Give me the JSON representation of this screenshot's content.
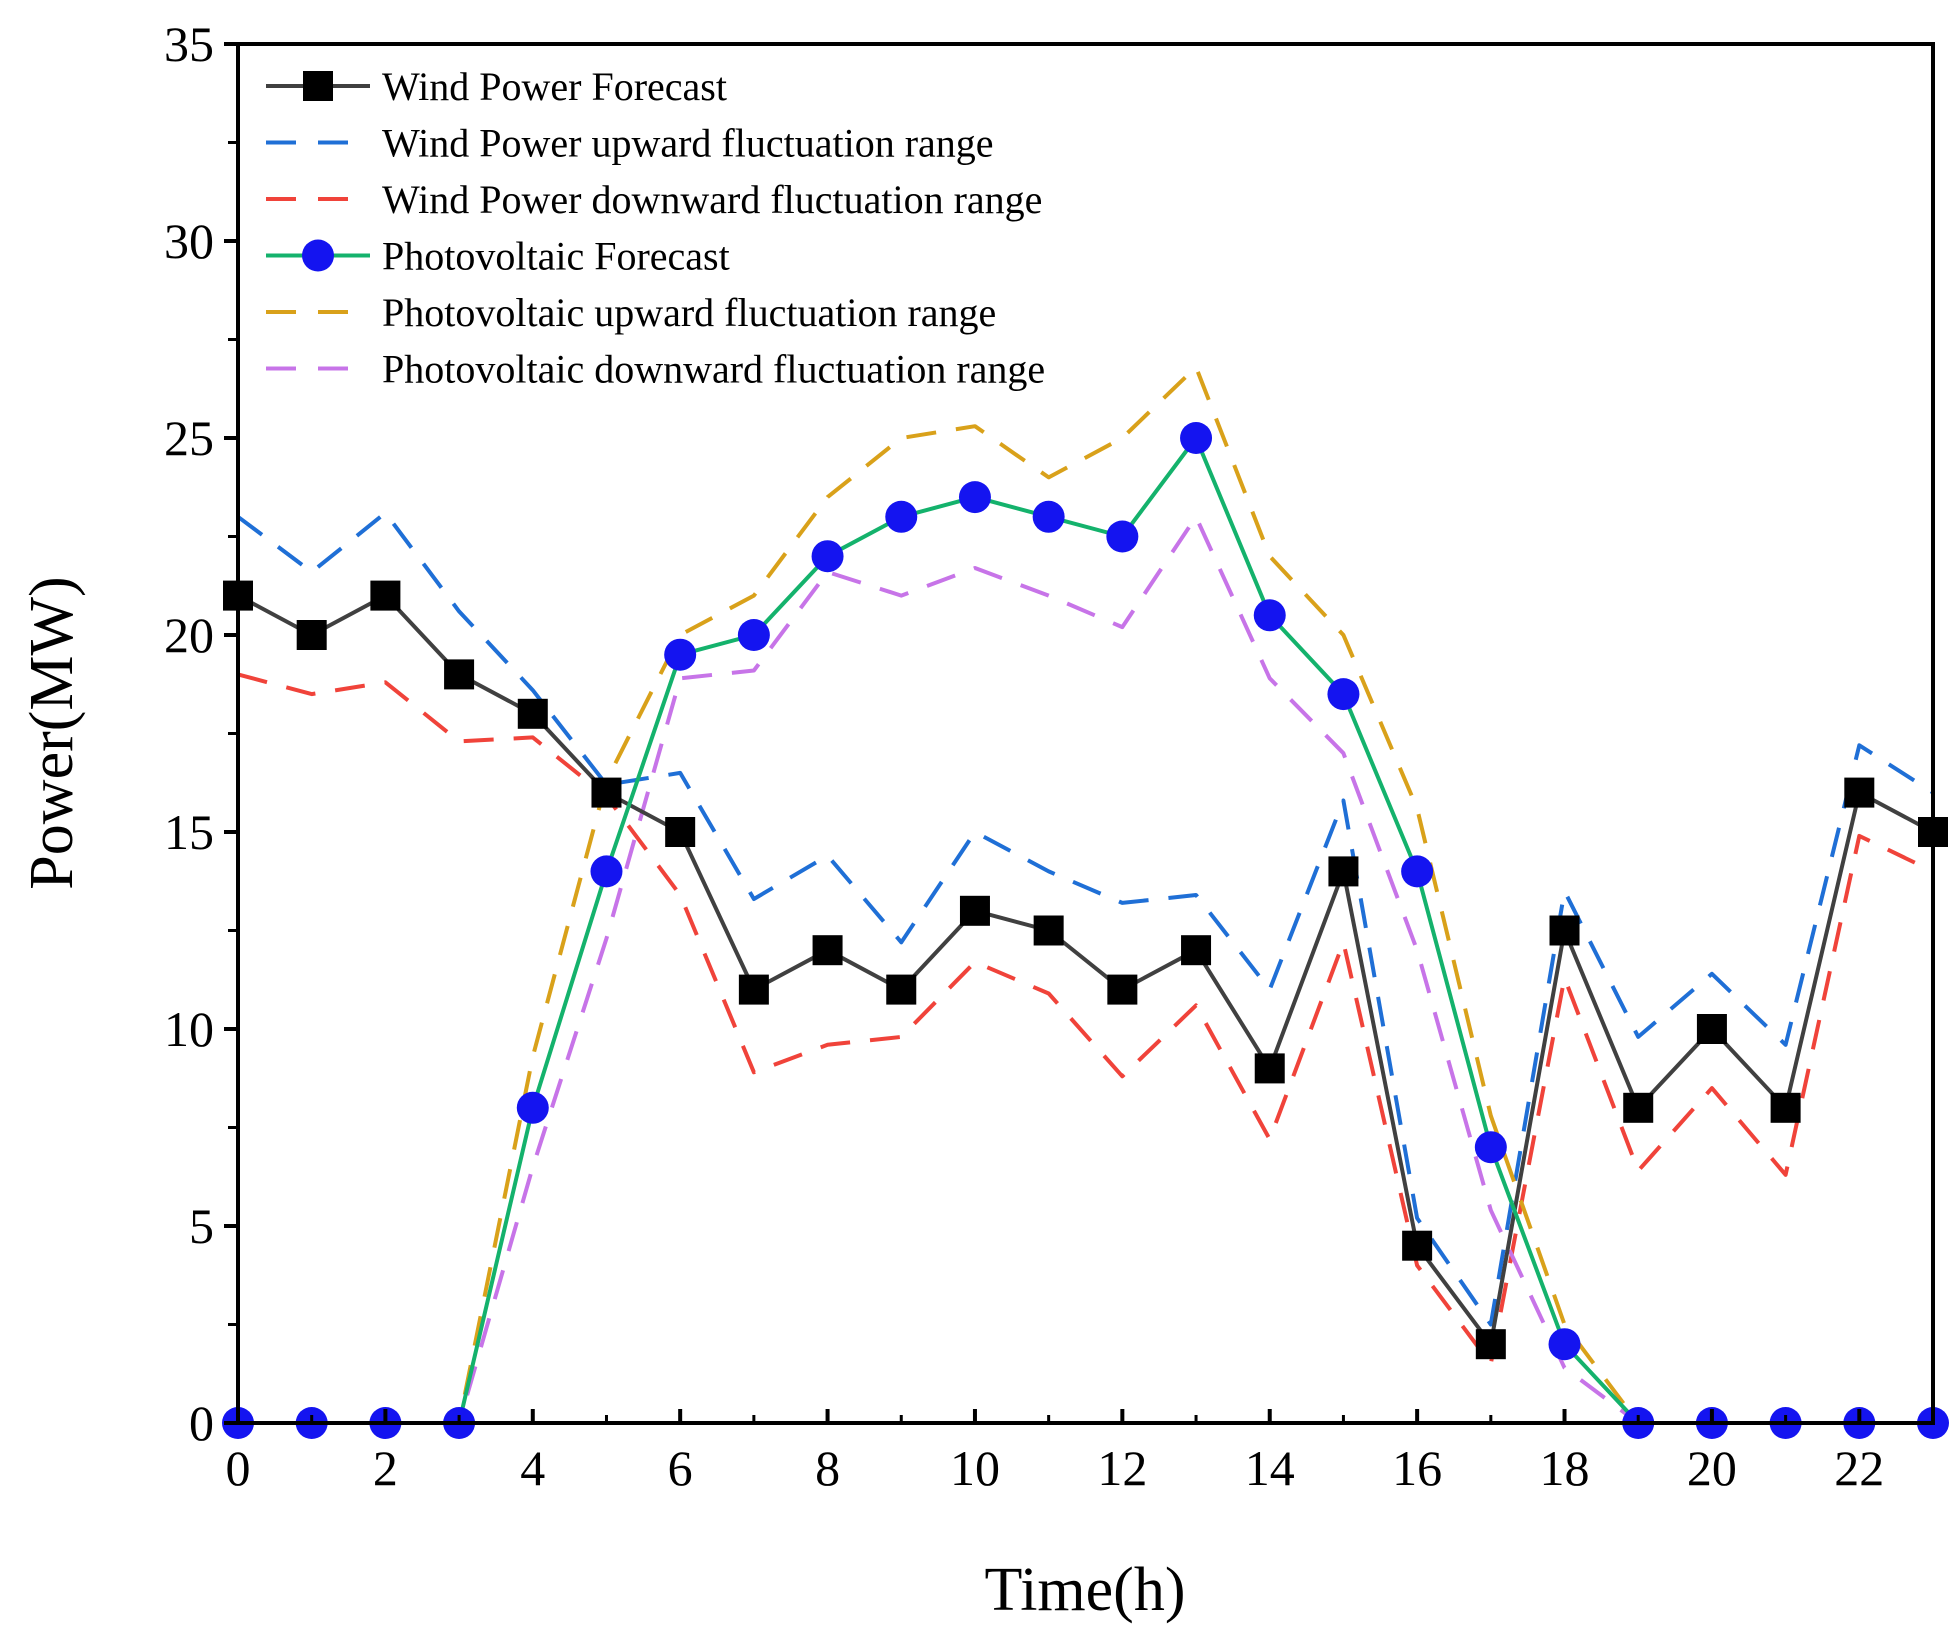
{
  "chart_data": {
    "type": "line",
    "title": "",
    "xlabel": "Time(h)",
    "ylabel": "Power(MW)",
    "xlim": [
      0,
      23
    ],
    "ylim": [
      0,
      35
    ],
    "xticks": [
      0,
      2,
      4,
      6,
      8,
      10,
      12,
      14,
      16,
      18,
      20,
      22
    ],
    "xtick_labels": [
      "0",
      "2",
      "4",
      "6",
      "8",
      "10",
      "12",
      "14",
      "16",
      "18",
      "20",
      "22"
    ],
    "yticks": [
      0,
      5,
      10,
      15,
      20,
      25,
      30,
      35
    ],
    "ytick_labels": [
      "0",
      "5",
      "10",
      "15",
      "20",
      "25",
      "30",
      "35"
    ],
    "grid": false,
    "legend_position": "top-left",
    "x": [
      0,
      1,
      2,
      3,
      4,
      5,
      6,
      7,
      8,
      9,
      10,
      11,
      12,
      13,
      14,
      15,
      16,
      17,
      18,
      19,
      20,
      21,
      22,
      23
    ],
    "series": [
      {
        "name": "Wind Power Forecast",
        "color": "#404040",
        "marker": "square",
        "marker_color": "#000000",
        "dash": "solid",
        "values": [
          21,
          20,
          21,
          19,
          18,
          16,
          15,
          11,
          12,
          11,
          13,
          12.5,
          11,
          12,
          9,
          14,
          4.5,
          2,
          12.5,
          8,
          10,
          8,
          16,
          15
        ]
      },
      {
        "name": "Wind Power upward fluctuation range",
        "color": "#1f6fd6",
        "marker": "none",
        "dash": "dashed",
        "values": [
          23,
          21.6,
          23.1,
          20.6,
          18.6,
          16.2,
          16.5,
          13.3,
          14.4,
          12.2,
          15,
          14,
          13.2,
          13.4,
          11,
          15.8,
          5.2,
          2.5,
          13.5,
          9.8,
          11.4,
          9.6,
          17.2,
          16
        ]
      },
      {
        "name": "Wind Power downward fluctuation range",
        "color": "#f0433a",
        "marker": "none",
        "dash": "dashed",
        "values": [
          19,
          18.5,
          18.8,
          17.3,
          17.4,
          15.9,
          13.4,
          8.9,
          9.6,
          9.8,
          11.7,
          10.9,
          8.8,
          10.6,
          7.2,
          12.2,
          4,
          1.5,
          11.3,
          6.4,
          8.5,
          6.3,
          14.9,
          14
        ]
      },
      {
        "name": "Photovoltaic Forecast",
        "color": "#14b26c",
        "marker": "circle",
        "marker_color": "#1414f0",
        "dash": "solid",
        "values": [
          0,
          0,
          0,
          0,
          8,
          14,
          19.5,
          20,
          22,
          23,
          23.5,
          23,
          22.5,
          25,
          20.5,
          18.5,
          14,
          7,
          2,
          0,
          0,
          0,
          0,
          0
        ]
      },
      {
        "name": "Photovoltaic upward fluctuation range",
        "color": "#d9a11a",
        "marker": "none",
        "dash": "dashed",
        "values": [
          0,
          0,
          0,
          0,
          9.3,
          16.3,
          20,
          21,
          23.5,
          25,
          25.3,
          24,
          25,
          26.8,
          22,
          20,
          15.6,
          7.8,
          2.5,
          0,
          0,
          0,
          0,
          0
        ]
      },
      {
        "name": "Photovoltaic downward fluctuation range",
        "color": "#c774e8",
        "marker": "none",
        "dash": "dashed",
        "values": [
          0,
          0,
          0,
          0,
          6.5,
          12.3,
          18.9,
          19.1,
          21.6,
          21,
          21.7,
          21,
          20.2,
          23,
          18.9,
          17,
          12,
          5.4,
          1.4,
          0,
          0,
          0,
          0,
          0
        ]
      }
    ]
  }
}
